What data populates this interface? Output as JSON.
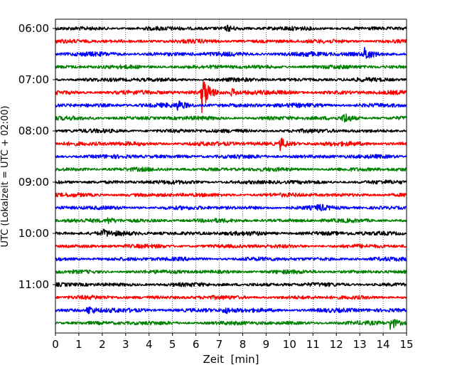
{
  "chart_data": {
    "type": "line",
    "title": "",
    "xlabel": "Zeit  [min]",
    "ylabel": "UTC (Lokalzeit = UTC + 02:00)",
    "xlim": [
      0,
      15
    ],
    "x_ticks": [
      0,
      1,
      2,
      3,
      4,
      5,
      6,
      7,
      8,
      9,
      10,
      11,
      12,
      13,
      14,
      15
    ],
    "y_tick_labels": [
      "06:00",
      "07:00",
      "08:00",
      "09:00",
      "10:00",
      "11:00"
    ],
    "grid": "vertical dotted at each minute",
    "trace_interval_minutes": 15,
    "first_trace_start_utc": "06:00",
    "colors_cycle": [
      "#000000",
      "#ff0000",
      "#0000ff",
      "#008000"
    ],
    "traces": [
      {
        "start": "06:00",
        "color": "#000000",
        "amplitude": 2.2,
        "events": [
          {
            "t": 7.3,
            "amp": 4
          }
        ]
      },
      {
        "start": "06:15",
        "color": "#ff0000",
        "amplitude": 2.2,
        "events": []
      },
      {
        "start": "06:30",
        "color": "#0000ff",
        "amplitude": 2.4,
        "events": [
          {
            "t": 13.2,
            "amp": 9
          },
          {
            "t": 10.6,
            "amp": 3
          }
        ]
      },
      {
        "start": "06:45",
        "color": "#008000",
        "amplitude": 2.2,
        "events": []
      },
      {
        "start": "07:00",
        "color": "#000000",
        "amplitude": 2.2,
        "events": []
      },
      {
        "start": "07:15",
        "color": "#ff0000",
        "amplitude": 2.4,
        "events": [
          {
            "t": 6.25,
            "amp": 28
          },
          {
            "t": 7.5,
            "amp": 5
          }
        ]
      },
      {
        "start": "07:30",
        "color": "#0000ff",
        "amplitude": 2.4,
        "events": [
          {
            "t": 5.2,
            "amp": 6
          }
        ]
      },
      {
        "start": "07:45",
        "color": "#008000",
        "amplitude": 2.2,
        "events": [
          {
            "t": 12.3,
            "amp": 8
          }
        ]
      },
      {
        "start": "08:00",
        "color": "#000000",
        "amplitude": 2.2,
        "events": []
      },
      {
        "start": "08:15",
        "color": "#ff0000",
        "amplitude": 2.4,
        "events": [
          {
            "t": 9.6,
            "amp": 8
          }
        ]
      },
      {
        "start": "08:30",
        "color": "#0000ff",
        "amplitude": 2.2,
        "events": []
      },
      {
        "start": "08:45",
        "color": "#008000",
        "amplitude": 2.2,
        "events": []
      },
      {
        "start": "09:00",
        "color": "#000000",
        "amplitude": 2.2,
        "events": []
      },
      {
        "start": "09:15",
        "color": "#ff0000",
        "amplitude": 2.2,
        "events": []
      },
      {
        "start": "09:30",
        "color": "#0000ff",
        "amplitude": 2.2,
        "events": [
          {
            "t": 11.2,
            "amp": 4
          }
        ]
      },
      {
        "start": "09:45",
        "color": "#008000",
        "amplitude": 2.2,
        "events": [
          {
            "t": 2.2,
            "amp": 4
          }
        ]
      },
      {
        "start": "10:00",
        "color": "#000000",
        "amplitude": 2.4,
        "events": [
          {
            "t": 2.0,
            "amp": 4
          }
        ]
      },
      {
        "start": "10:15",
        "color": "#ff0000",
        "amplitude": 2.2,
        "events": []
      },
      {
        "start": "10:30",
        "color": "#0000ff",
        "amplitude": 2.2,
        "events": []
      },
      {
        "start": "10:45",
        "color": "#008000",
        "amplitude": 2.2,
        "events": []
      },
      {
        "start": "11:00",
        "color": "#000000",
        "amplitude": 2.2,
        "events": []
      },
      {
        "start": "11:15",
        "color": "#ff0000",
        "amplitude": 2.2,
        "events": []
      },
      {
        "start": "11:30",
        "color": "#0000ff",
        "amplitude": 2.4,
        "events": [
          {
            "t": 1.35,
            "amp": 7
          },
          {
            "t": 7.2,
            "amp": 4
          }
        ]
      },
      {
        "start": "11:45",
        "color": "#008000",
        "amplitude": 2.2,
        "events": [
          {
            "t": 14.3,
            "amp": 9
          }
        ]
      }
    ]
  }
}
